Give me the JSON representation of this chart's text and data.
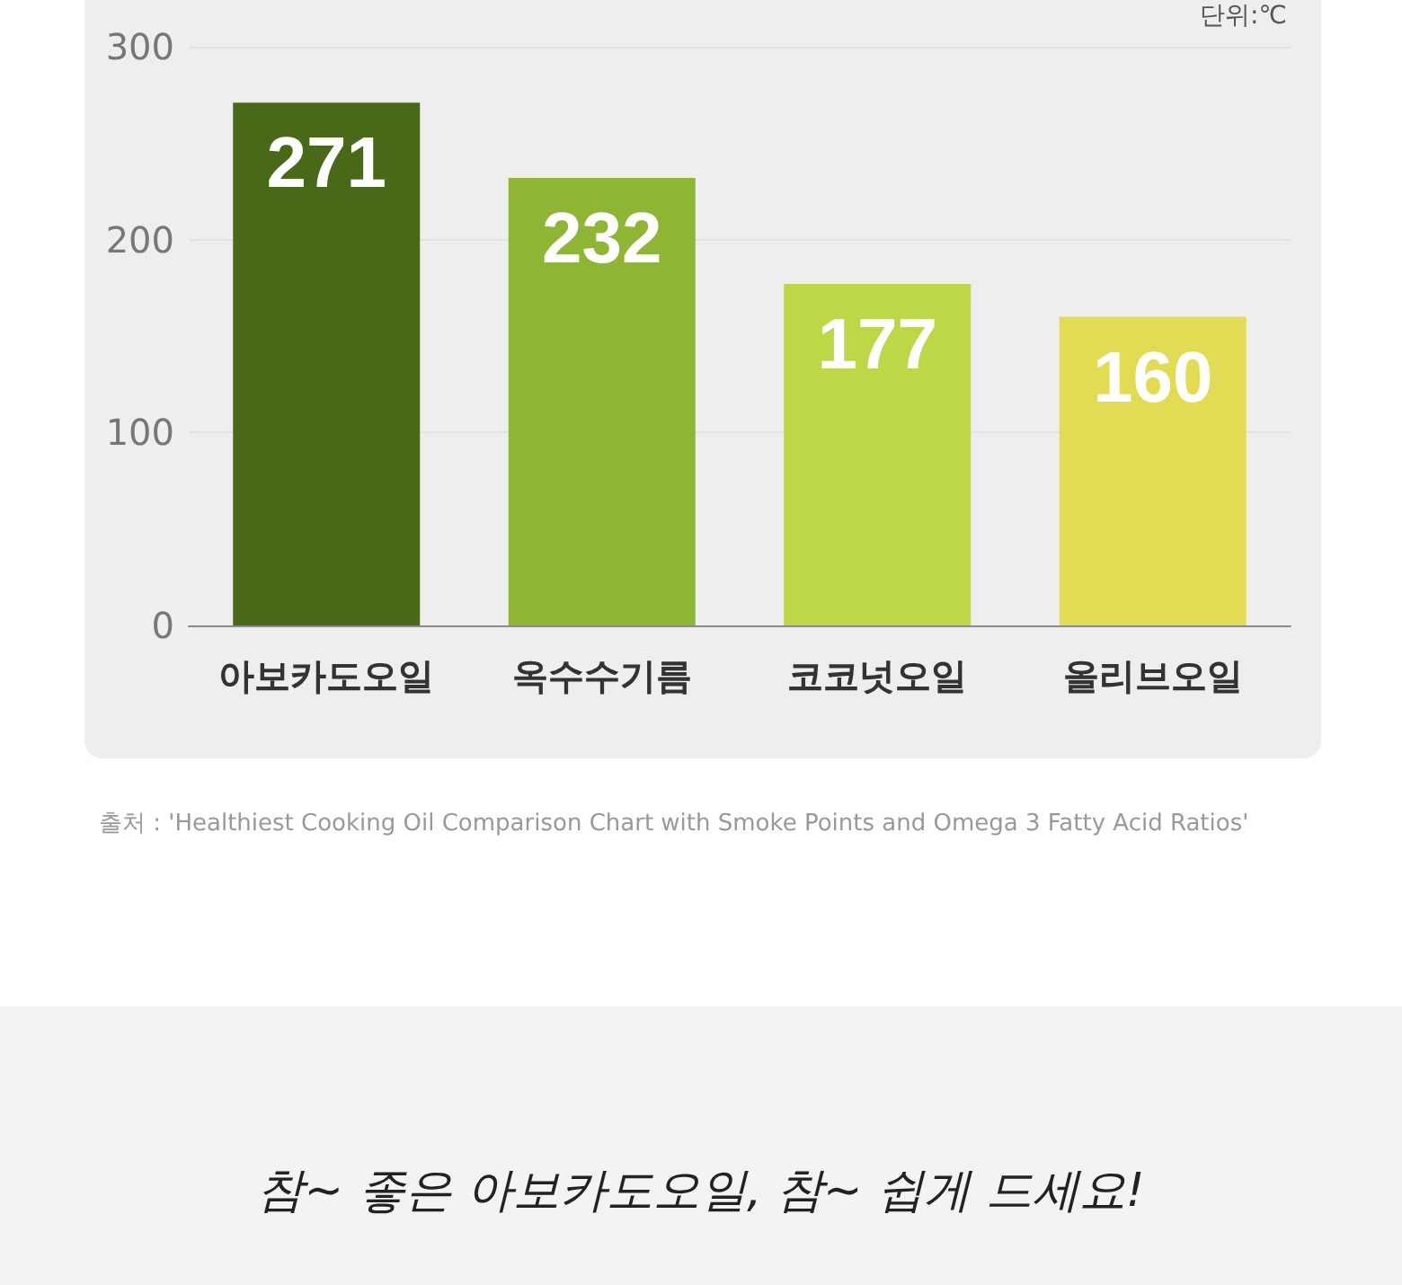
{
  "chart_data": {
    "type": "bar",
    "ylabel": "단위:℃",
    "categories": [
      "아보카도오일",
      "옥수수기름",
      "코코넛오일",
      "올리브오일"
    ],
    "values": [
      271,
      232,
      177,
      160
    ],
    "colors": [
      "#486a18",
      "#8fb535",
      "#bcd846",
      "#e2dc55"
    ],
    "ylim": [
      0,
      300
    ],
    "yticks": [
      0,
      100,
      200,
      300
    ],
    "grid": "y",
    "data_labels": true,
    "annotations": [
      "출처 : 'Healthiest Cooking Oil Comparison Chart with Smoke Points and Omega 3 Fatty Acid Ratios'",
      "참~ 좋은 아보카도오일, 참~ 쉽게 드세요!"
    ]
  }
}
